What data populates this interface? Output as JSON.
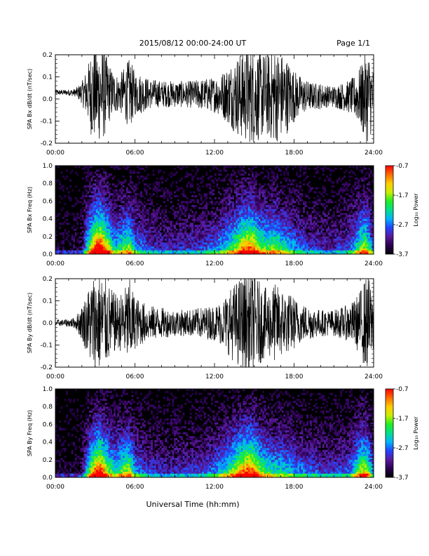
{
  "header": {
    "title": "2015/08/12  00:00-24:00 UT",
    "page": "Page 1/1"
  },
  "footer": {
    "xlabel": "Universal Time (hh:mm)"
  },
  "colors": {
    "trace": "#000000",
    "spectrogram_background": "#000000",
    "colorbar_stops": [
      "#000000",
      "#2a0050",
      "#5a1a9a",
      "#2244ff",
      "#00b4ff",
      "#00e08a",
      "#22ee22",
      "#ccee00",
      "#ffcc00",
      "#ff6a00",
      "#ff0000"
    ]
  },
  "chart_data": [
    {
      "type": "line",
      "name": "bx_trace",
      "ylabel": "SPA Bx dB/dt (nT/sec)",
      "xlim": [
        0,
        24
      ],
      "ylim": [
        -0.2,
        0.2
      ],
      "xticks": [
        "00:00",
        "06:00",
        "12:00",
        "18:00",
        "24:00"
      ],
      "yticks": [
        "-0.2",
        "-0.1",
        "0.0",
        "0.1",
        "0.2"
      ],
      "envelope": {
        "x_hours": [
          0,
          0.5,
          1,
          1.5,
          2,
          2.5,
          2.8,
          3.2,
          3.6,
          4,
          4.4,
          4.8,
          5.2,
          5.6,
          6,
          6.5,
          7,
          8,
          9,
          10,
          11,
          12,
          12.5,
          13,
          13.5,
          14,
          14.5,
          15,
          15.5,
          16,
          16.5,
          17,
          17.5,
          18,
          18.5,
          19,
          19.5,
          20,
          20.5,
          21,
          21.5,
          22,
          22.5,
          23,
          23.3,
          23.6,
          24
        ],
        "amplitude": [
          0.012,
          0.012,
          0.014,
          0.018,
          0.05,
          0.14,
          0.22,
          0.22,
          0.22,
          0.14,
          0.1,
          0.08,
          0.12,
          0.16,
          0.1,
          0.09,
          0.07,
          0.06,
          0.06,
          0.06,
          0.07,
          0.08,
          0.1,
          0.13,
          0.17,
          0.2,
          0.22,
          0.22,
          0.2,
          0.19,
          0.22,
          0.2,
          0.17,
          0.12,
          0.09,
          0.07,
          0.06,
          0.06,
          0.05,
          0.05,
          0.06,
          0.07,
          0.09,
          0.14,
          0.2,
          0.22,
          0.12
        ],
        "offset": 0.03
      }
    },
    {
      "type": "heatmap",
      "name": "bx_spectrogram",
      "ylabel": "SPA Bx Freq (Hz)",
      "xlim": [
        0,
        24
      ],
      "ylim": [
        0.0,
        1.0
      ],
      "xticks": [
        "00:00",
        "06:00",
        "12:00",
        "18:00",
        "24:00"
      ],
      "yticks": [
        "0.0",
        "0.2",
        "0.4",
        "0.6",
        "0.8",
        "1.0"
      ],
      "colorbar": {
        "label": "Log₁₀ Power",
        "ticks": [
          "-0.7",
          "-1.7",
          "-2.7",
          "-3.7"
        ],
        "range": [
          -3.7,
          -0.7
        ]
      },
      "activity_hours": [
        0,
        1,
        2,
        2.5,
        3,
        3.4,
        4,
        4.5,
        5.2,
        5.6,
        6,
        7,
        8,
        9,
        10,
        11,
        12,
        13,
        13.6,
        14,
        14.5,
        15,
        15.5,
        16,
        16.5,
        17,
        18,
        19,
        20,
        21,
        22,
        22.5,
        23,
        23.4,
        24
      ],
      "activity_level": [
        0.05,
        0.05,
        0.1,
        0.55,
        0.9,
        1.0,
        0.65,
        0.4,
        0.55,
        0.6,
        0.35,
        0.25,
        0.2,
        0.2,
        0.22,
        0.24,
        0.3,
        0.45,
        0.6,
        0.75,
        0.85,
        0.8,
        0.6,
        0.55,
        0.6,
        0.5,
        0.35,
        0.25,
        0.2,
        0.2,
        0.25,
        0.35,
        0.6,
        0.65,
        0.3
      ]
    },
    {
      "type": "line",
      "name": "by_trace",
      "ylabel": "SPA By dB/dt (nT/sec)",
      "xlim": [
        0,
        24
      ],
      "ylim": [
        -0.2,
        0.2
      ],
      "xticks": [
        "00:00",
        "06:00",
        "12:00",
        "18:00",
        "24:00"
      ],
      "yticks": [
        "-0.2",
        "-0.1",
        "0.0",
        "0.1",
        "0.2"
      ],
      "envelope": {
        "x_hours": [
          0,
          0.5,
          1,
          1.5,
          2,
          2.5,
          2.8,
          3.2,
          3.6,
          4,
          4.4,
          4.8,
          5.2,
          5.6,
          6,
          6.5,
          7,
          8,
          9,
          10,
          11,
          12,
          12.5,
          13,
          13.5,
          14,
          14.5,
          15,
          15.5,
          16,
          16.5,
          17,
          17.5,
          18,
          18.5,
          19,
          19.5,
          20,
          20.5,
          21,
          21.5,
          22,
          22.5,
          23,
          23.3,
          23.6,
          24
        ],
        "amplitude": [
          0.015,
          0.015,
          0.018,
          0.025,
          0.08,
          0.16,
          0.22,
          0.22,
          0.22,
          0.18,
          0.14,
          0.12,
          0.16,
          0.2,
          0.12,
          0.1,
          0.08,
          0.07,
          0.06,
          0.06,
          0.07,
          0.08,
          0.1,
          0.14,
          0.18,
          0.21,
          0.22,
          0.22,
          0.18,
          0.15,
          0.18,
          0.16,
          0.14,
          0.12,
          0.09,
          0.08,
          0.07,
          0.06,
          0.06,
          0.06,
          0.07,
          0.08,
          0.1,
          0.15,
          0.2,
          0.22,
          0.12
        ],
        "offset": 0.0
      }
    },
    {
      "type": "heatmap",
      "name": "by_spectrogram",
      "ylabel": "SPA By Freq (Hz)",
      "xlim": [
        0,
        24
      ],
      "ylim": [
        0.0,
        1.0
      ],
      "xticks": [
        "00:00",
        "06:00",
        "12:00",
        "18:00",
        "24:00"
      ],
      "yticks": [
        "0.0",
        "0.2",
        "0.4",
        "0.6",
        "0.8",
        "1.0"
      ],
      "colorbar": {
        "label": "Log₁₀ Power",
        "ticks": [
          "-0.7",
          "-1.7",
          "-2.7",
          "-3.7"
        ],
        "range": [
          -3.7,
          -0.7
        ]
      },
      "activity_hours": [
        0,
        1,
        2,
        2.5,
        3,
        3.4,
        4,
        4.5,
        5.2,
        5.6,
        6,
        7,
        8,
        9,
        10,
        11,
        12,
        13,
        13.6,
        14,
        14.5,
        15,
        15.5,
        16,
        16.5,
        17,
        18,
        19,
        20,
        21,
        22,
        22.5,
        23,
        23.4,
        24
      ],
      "activity_level": [
        0.05,
        0.05,
        0.1,
        0.5,
        0.85,
        0.95,
        0.6,
        0.45,
        0.6,
        0.65,
        0.35,
        0.25,
        0.2,
        0.2,
        0.22,
        0.24,
        0.32,
        0.5,
        0.65,
        0.8,
        0.9,
        0.85,
        0.6,
        0.5,
        0.45,
        0.45,
        0.35,
        0.3,
        0.25,
        0.22,
        0.28,
        0.4,
        0.65,
        0.7,
        0.3
      ]
    }
  ]
}
